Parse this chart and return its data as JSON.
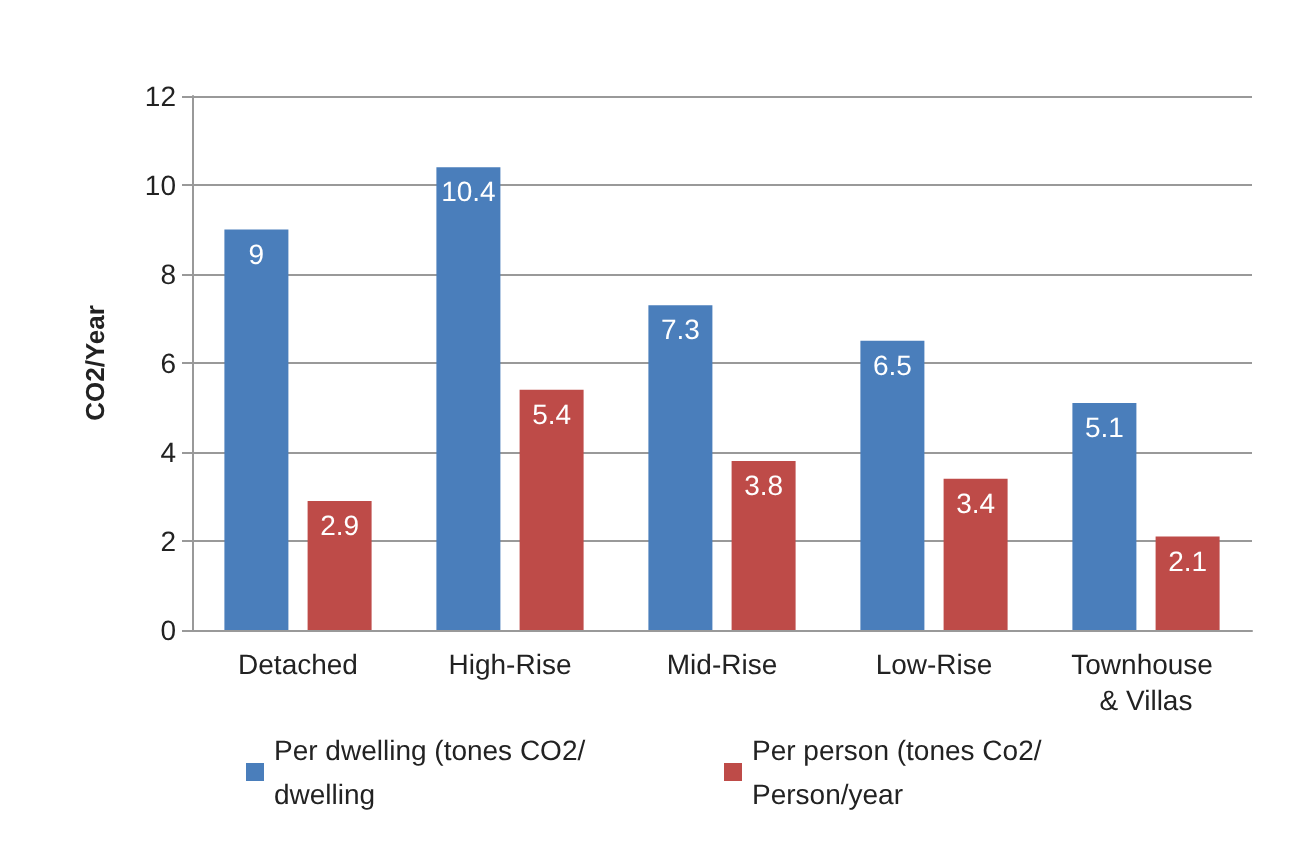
{
  "chart_data": {
    "type": "bar",
    "ylabel": "CO2/Year",
    "categories": [
      "Detached",
      "High-Rise",
      "Mid-Rise",
      "Low-Rise",
      "Townhouse & Villas"
    ],
    "series": [
      {
        "name": "Per dwelling (tones CO2/dwelling",
        "color": "#4a7ebb",
        "values": [
          9,
          10.4,
          7.3,
          6.5,
          5.1
        ]
      },
      {
        "name": "Per person (tones Co2/Person/year",
        "color": "#be4b48",
        "values": [
          2.9,
          5.4,
          3.8,
          3.4,
          2.1
        ]
      }
    ],
    "ylim": [
      0,
      12
    ],
    "yticks": [
      0,
      2,
      4,
      6,
      8,
      10,
      12
    ],
    "grid": "y",
    "legend": "bottom",
    "data_labels": true
  }
}
